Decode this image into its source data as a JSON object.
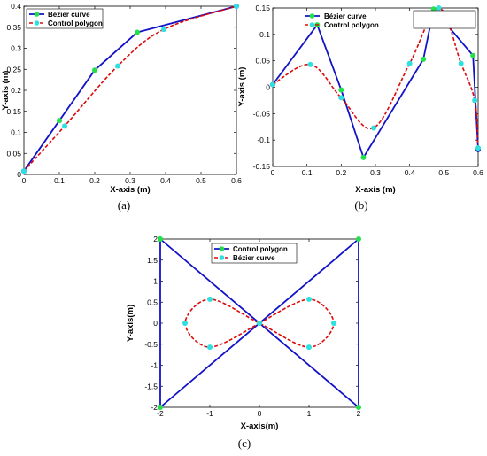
{
  "colors": {
    "blue": "#1212c8",
    "red": "#dd0a0a",
    "green": "#22e04a",
    "cyan": "#2ee0e0",
    "dark_blue_marker": "#1212c8"
  },
  "chart_data": [
    {
      "type": "line",
      "caption": "(a)",
      "xlabel": "X-axis (m)",
      "ylabel": "Y-axis (m)",
      "xlim": [
        0,
        0.6
      ],
      "ylim": [
        0,
        0.4
      ],
      "xticks": [
        "0",
        "0.1",
        "0.2",
        "0.3",
        "0.4",
        "0.5",
        "0.6"
      ],
      "yticks": [
        "0",
        "0.05",
        "0.1",
        "0.15",
        "0.2",
        "0.25",
        "0.3",
        "0.35",
        "0.4"
      ],
      "legend": {
        "position": "top-left",
        "entries": [
          "Bézier curve",
          "Control polygon"
        ]
      },
      "series": [
        {
          "name": "Bézier curve",
          "style": "polygon",
          "x": [
            0,
            0.1,
            0.2,
            0.32,
            0.6
          ],
          "y": [
            0.008,
            0.128,
            0.248,
            0.338,
            0.4
          ]
        },
        {
          "name": "Control polygon",
          "style": "curve",
          "x": [
            0,
            0.115,
            0.265,
            0.395,
            0.6
          ],
          "y": [
            0.008,
            0.115,
            0.258,
            0.345,
            0.4
          ]
        }
      ]
    },
    {
      "type": "line",
      "caption": "(b)",
      "xlabel": "X-axis (m)",
      "ylabel": "Y-axis (m)",
      "xlim": [
        0,
        0.6
      ],
      "ylim": [
        -0.15,
        0.15
      ],
      "xticks": [
        "0",
        "0.1",
        "0.2",
        "0.3",
        "0.4",
        "0.5",
        "0.6"
      ],
      "yticks": [
        "-0.15",
        "-0.1",
        "-0.05",
        "0",
        "0.05",
        "0.1",
        "0.15"
      ],
      "legend": {
        "position": "top-right",
        "entries": [
          "Bézier curve",
          "Control polygon"
        ]
      },
      "series": [
        {
          "name": "Bézier curve",
          "style": "polygon",
          "x": [
            0,
            0.13,
            0.2,
            0.265,
            0.44,
            0.47,
            0.585,
            0.6
          ],
          "y": [
            0.005,
            0.118,
            -0.005,
            -0.133,
            0.053,
            0.148,
            0.06,
            -0.118
          ]
        },
        {
          "name": "Control polygon",
          "style": "curve",
          "x": [
            0,
            0.11,
            0.2,
            0.295,
            0.4,
            0.485,
            0.55,
            0.59,
            0.6
          ],
          "y": [
            0.005,
            0.043,
            -0.02,
            -0.077,
            0.045,
            0.15,
            0.045,
            -0.025,
            -0.115
          ]
        }
      ]
    },
    {
      "type": "line",
      "caption": "(c)",
      "xlabel": "X-axis(m)",
      "ylabel": "Y-axis(m)",
      "xlim": [
        -2,
        2
      ],
      "ylim": [
        -2,
        2
      ],
      "xticks": [
        "-2",
        "-1",
        "0",
        "1",
        "2"
      ],
      "yticks": [
        "-2",
        "-1.5",
        "-1",
        "-0.5",
        "0",
        "0.5",
        "1",
        "1.5",
        "2"
      ],
      "legend": {
        "position": "top-center",
        "entries": [
          "Control polygon",
          "Bézier curve"
        ]
      },
      "series": [
        {
          "name": "Control polygon",
          "style": "polygon",
          "x": [
            -2,
            -2,
            2,
            2,
            -2
          ],
          "y": [
            2,
            -2,
            2,
            -2,
            2
          ]
        },
        {
          "name": "Bézier curve",
          "style": "curve",
          "x": [
            0,
            1,
            1.5,
            1,
            0,
            -1,
            -1.5,
            -1,
            0
          ],
          "y": [
            0,
            0.57,
            0,
            -0.57,
            0,
            0.57,
            0,
            -0.57,
            0
          ]
        }
      ]
    }
  ]
}
